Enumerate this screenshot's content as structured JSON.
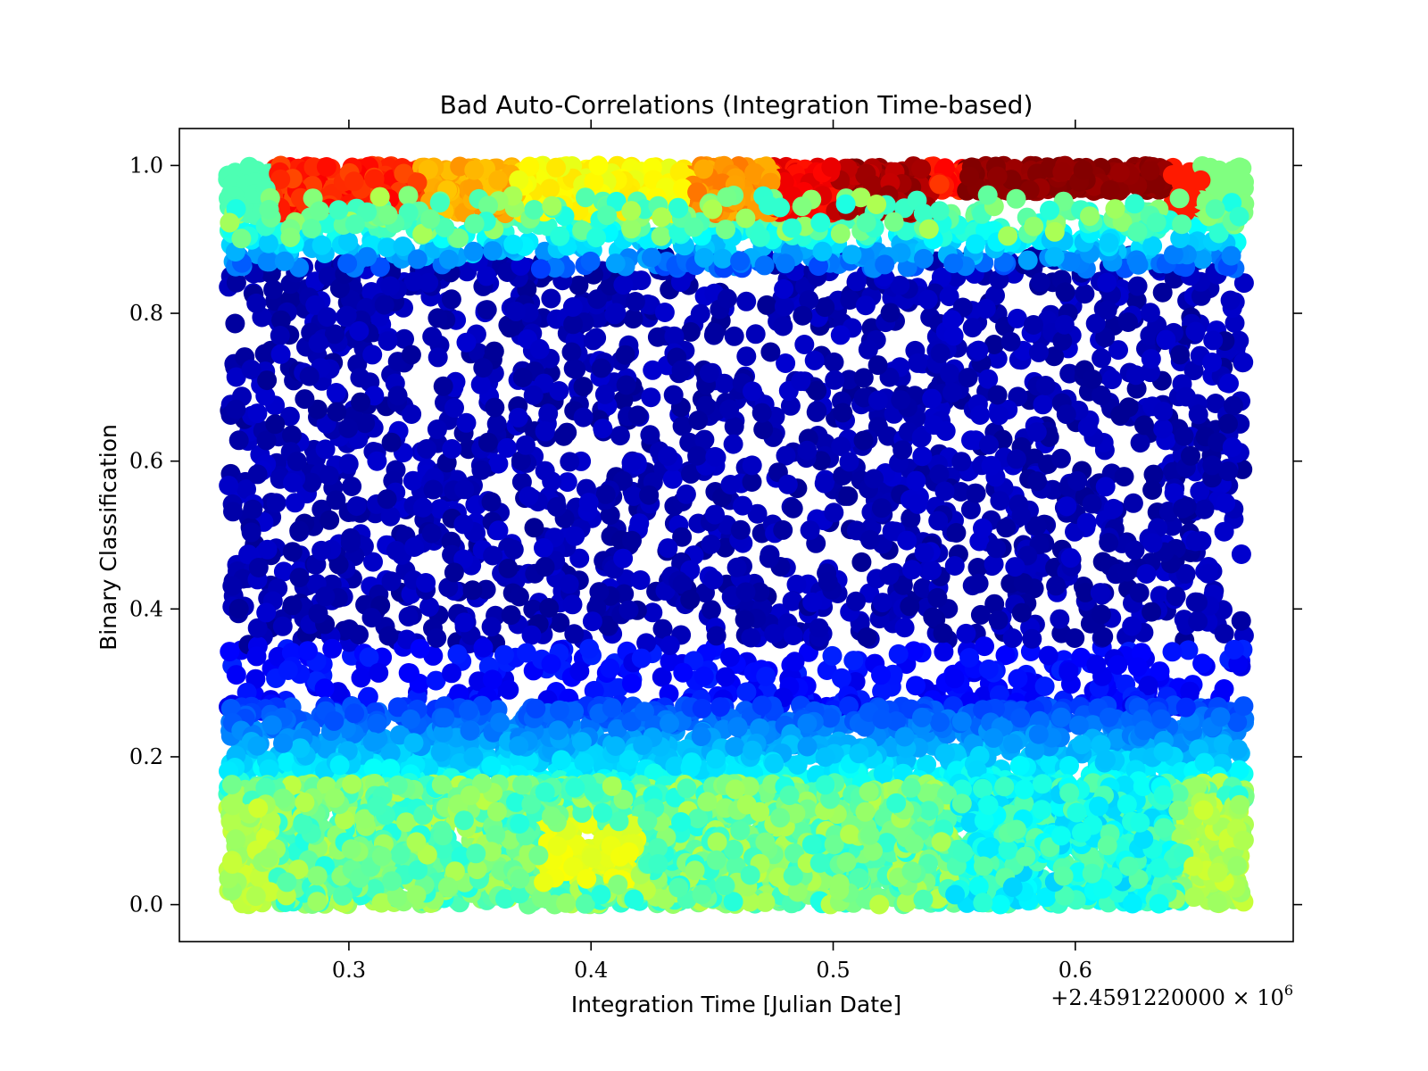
{
  "chart_data": {
    "type": "scatter",
    "title": "Bad Auto-Correlations (Integration Time-based)",
    "xlabel": "Integration Time [Julian Date]",
    "ylabel": "Binary Classification",
    "x_offset_label": "+2.4591220000 × 10",
    "x_offset_exponent": "6",
    "xlim": [
      0.23,
      0.69
    ],
    "ylim": [
      -0.05,
      1.05
    ],
    "x_ticks": [
      {
        "value": 0.3,
        "label": "0.3"
      },
      {
        "value": 0.4,
        "label": "0.4"
      },
      {
        "value": 0.5,
        "label": "0.5"
      },
      {
        "value": 0.6,
        "label": "0.6"
      }
    ],
    "y_ticks": [
      {
        "value": 0.0,
        "label": "0.0"
      },
      {
        "value": 0.2,
        "label": "0.2"
      },
      {
        "value": 0.4,
        "label": "0.4"
      },
      {
        "value": 0.6,
        "label": "0.6"
      },
      {
        "value": 0.8,
        "label": "0.8"
      },
      {
        "value": 1.0,
        "label": "1.0"
      }
    ],
    "x_range_data": [
      0.25,
      0.67
    ],
    "colormap": "jet",
    "grid": false,
    "legend": "none",
    "colors": {
      "band_low": "#a0ff50",
      "band_mid_low": "#00c8ff",
      "body": "#00008b",
      "band_high_left": "#ff4000",
      "band_high_mid": "#e0ff20",
      "band_high_right": "#7a0000"
    },
    "regions": [
      {
        "name": "lower band",
        "x": [
          0.25,
          0.67
        ],
        "y": [
          0.0,
          0.16
        ],
        "color_range": [
          "#30ffd0",
          "#c0ff40"
        ]
      },
      {
        "name": "transition band",
        "x": [
          0.25,
          0.67
        ],
        "y": [
          0.16,
          0.28
        ],
        "color_range": [
          "#0060ff",
          "#40e0ff"
        ]
      },
      {
        "name": "main body",
        "x": [
          0.25,
          0.67
        ],
        "y": [
          0.28,
          0.88
        ],
        "color_range": [
          "#00008b",
          "#0000ff"
        ]
      },
      {
        "name": "upper transition",
        "x": [
          0.25,
          0.67
        ],
        "y": [
          0.86,
          0.95
        ],
        "color_range": [
          "#0080ff",
          "#60ffa0"
        ]
      },
      {
        "name": "upper band",
        "x": [
          0.25,
          0.67
        ],
        "y": [
          0.93,
          1.0
        ],
        "color_range": [
          "#ff4000",
          "#800000"
        ]
      }
    ]
  }
}
